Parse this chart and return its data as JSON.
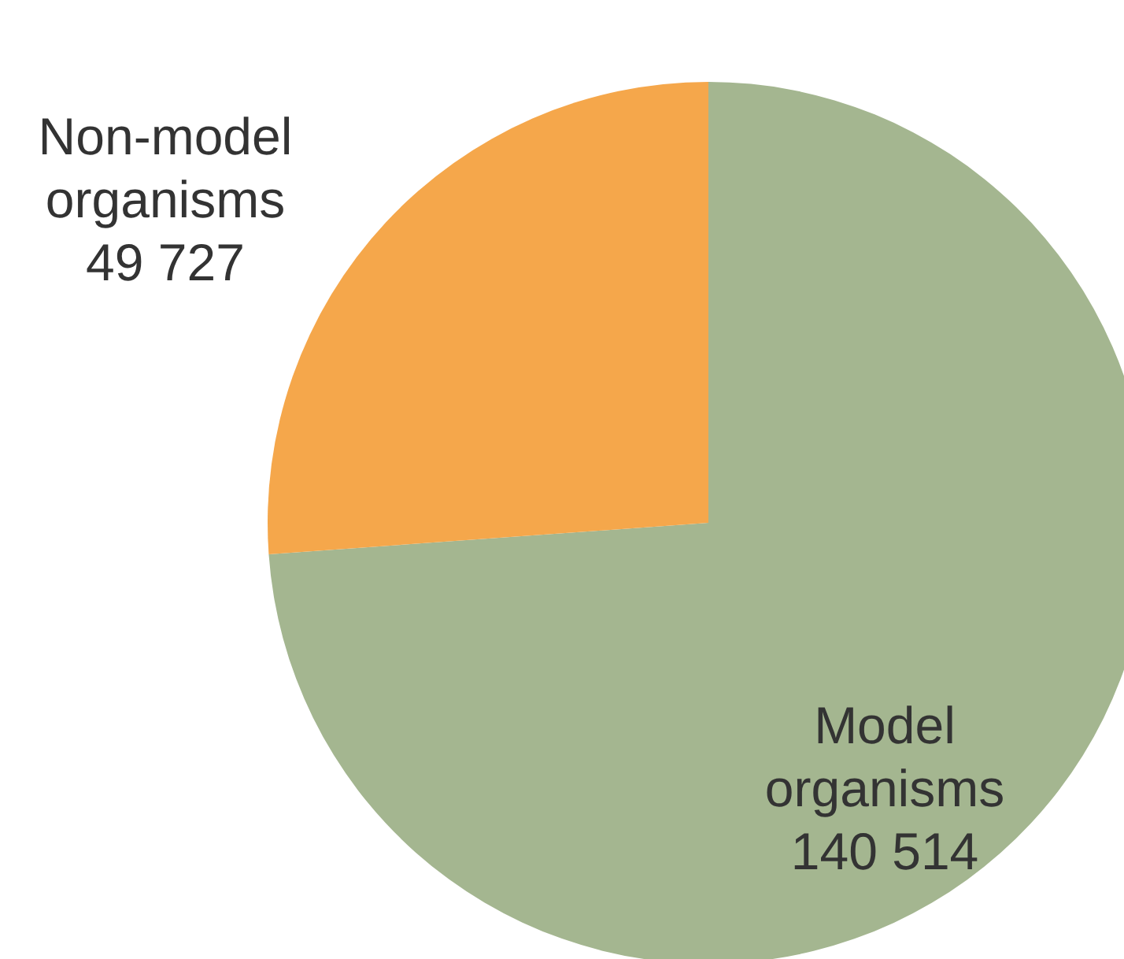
{
  "chart_data": {
    "type": "pie",
    "categories": [
      "Model organisms",
      "Non-model organisms"
    ],
    "values": [
      140514,
      49727
    ],
    "value_labels": [
      "140 514",
      "49 727"
    ],
    "colors": [
      "#a4b690",
      "#f5a74b"
    ]
  }
}
